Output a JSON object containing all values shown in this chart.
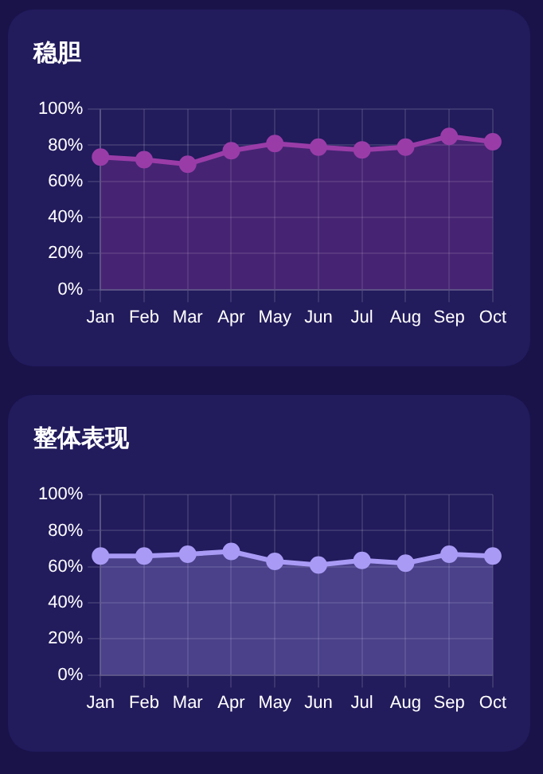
{
  "chart_data": [
    {
      "type": "area",
      "title": "稳胆",
      "categories": [
        "Jan",
        "Feb",
        "Mar",
        "Apr",
        "May",
        "Jun",
        "Jul",
        "Aug",
        "Sep",
        "Oct"
      ],
      "series": [
        {
          "color": "#9a3ca8",
          "values": [
            73.5,
            72,
            69.5,
            77,
            81,
            79,
            77.5,
            79,
            85,
            82
          ]
        }
      ],
      "ylim": [
        0,
        100
      ],
      "yticks": [
        {
          "value": 0,
          "label": "0%"
        },
        {
          "value": 20,
          "label": "20%"
        },
        {
          "value": 40,
          "label": "40%"
        },
        {
          "value": 60,
          "label": "60%"
        },
        {
          "value": 80,
          "label": "80%"
        },
        {
          "value": 100,
          "label": "100%"
        }
      ],
      "grid": true,
      "legend": false,
      "marker": "circle"
    },
    {
      "type": "area",
      "title": "整体表现",
      "categories": [
        "Jan",
        "Feb",
        "Mar",
        "Apr",
        "May",
        "Jun",
        "Jul",
        "Aug",
        "Sep",
        "Oct"
      ],
      "series": [
        {
          "color": "#a99bf5",
          "values": [
            66,
            66,
            67,
            68.5,
            63,
            61,
            63.5,
            62,
            67,
            66
          ]
        }
      ],
      "ylim": [
        0,
        100
      ],
      "yticks": [
        {
          "value": 0,
          "label": "0%"
        },
        {
          "value": 20,
          "label": "20%"
        },
        {
          "value": 40,
          "label": "40%"
        },
        {
          "value": 60,
          "label": "60%"
        },
        {
          "value": 80,
          "label": "80%"
        },
        {
          "value": 100,
          "label": "100%"
        }
      ],
      "grid": true,
      "legend": false,
      "marker": "circle"
    }
  ]
}
